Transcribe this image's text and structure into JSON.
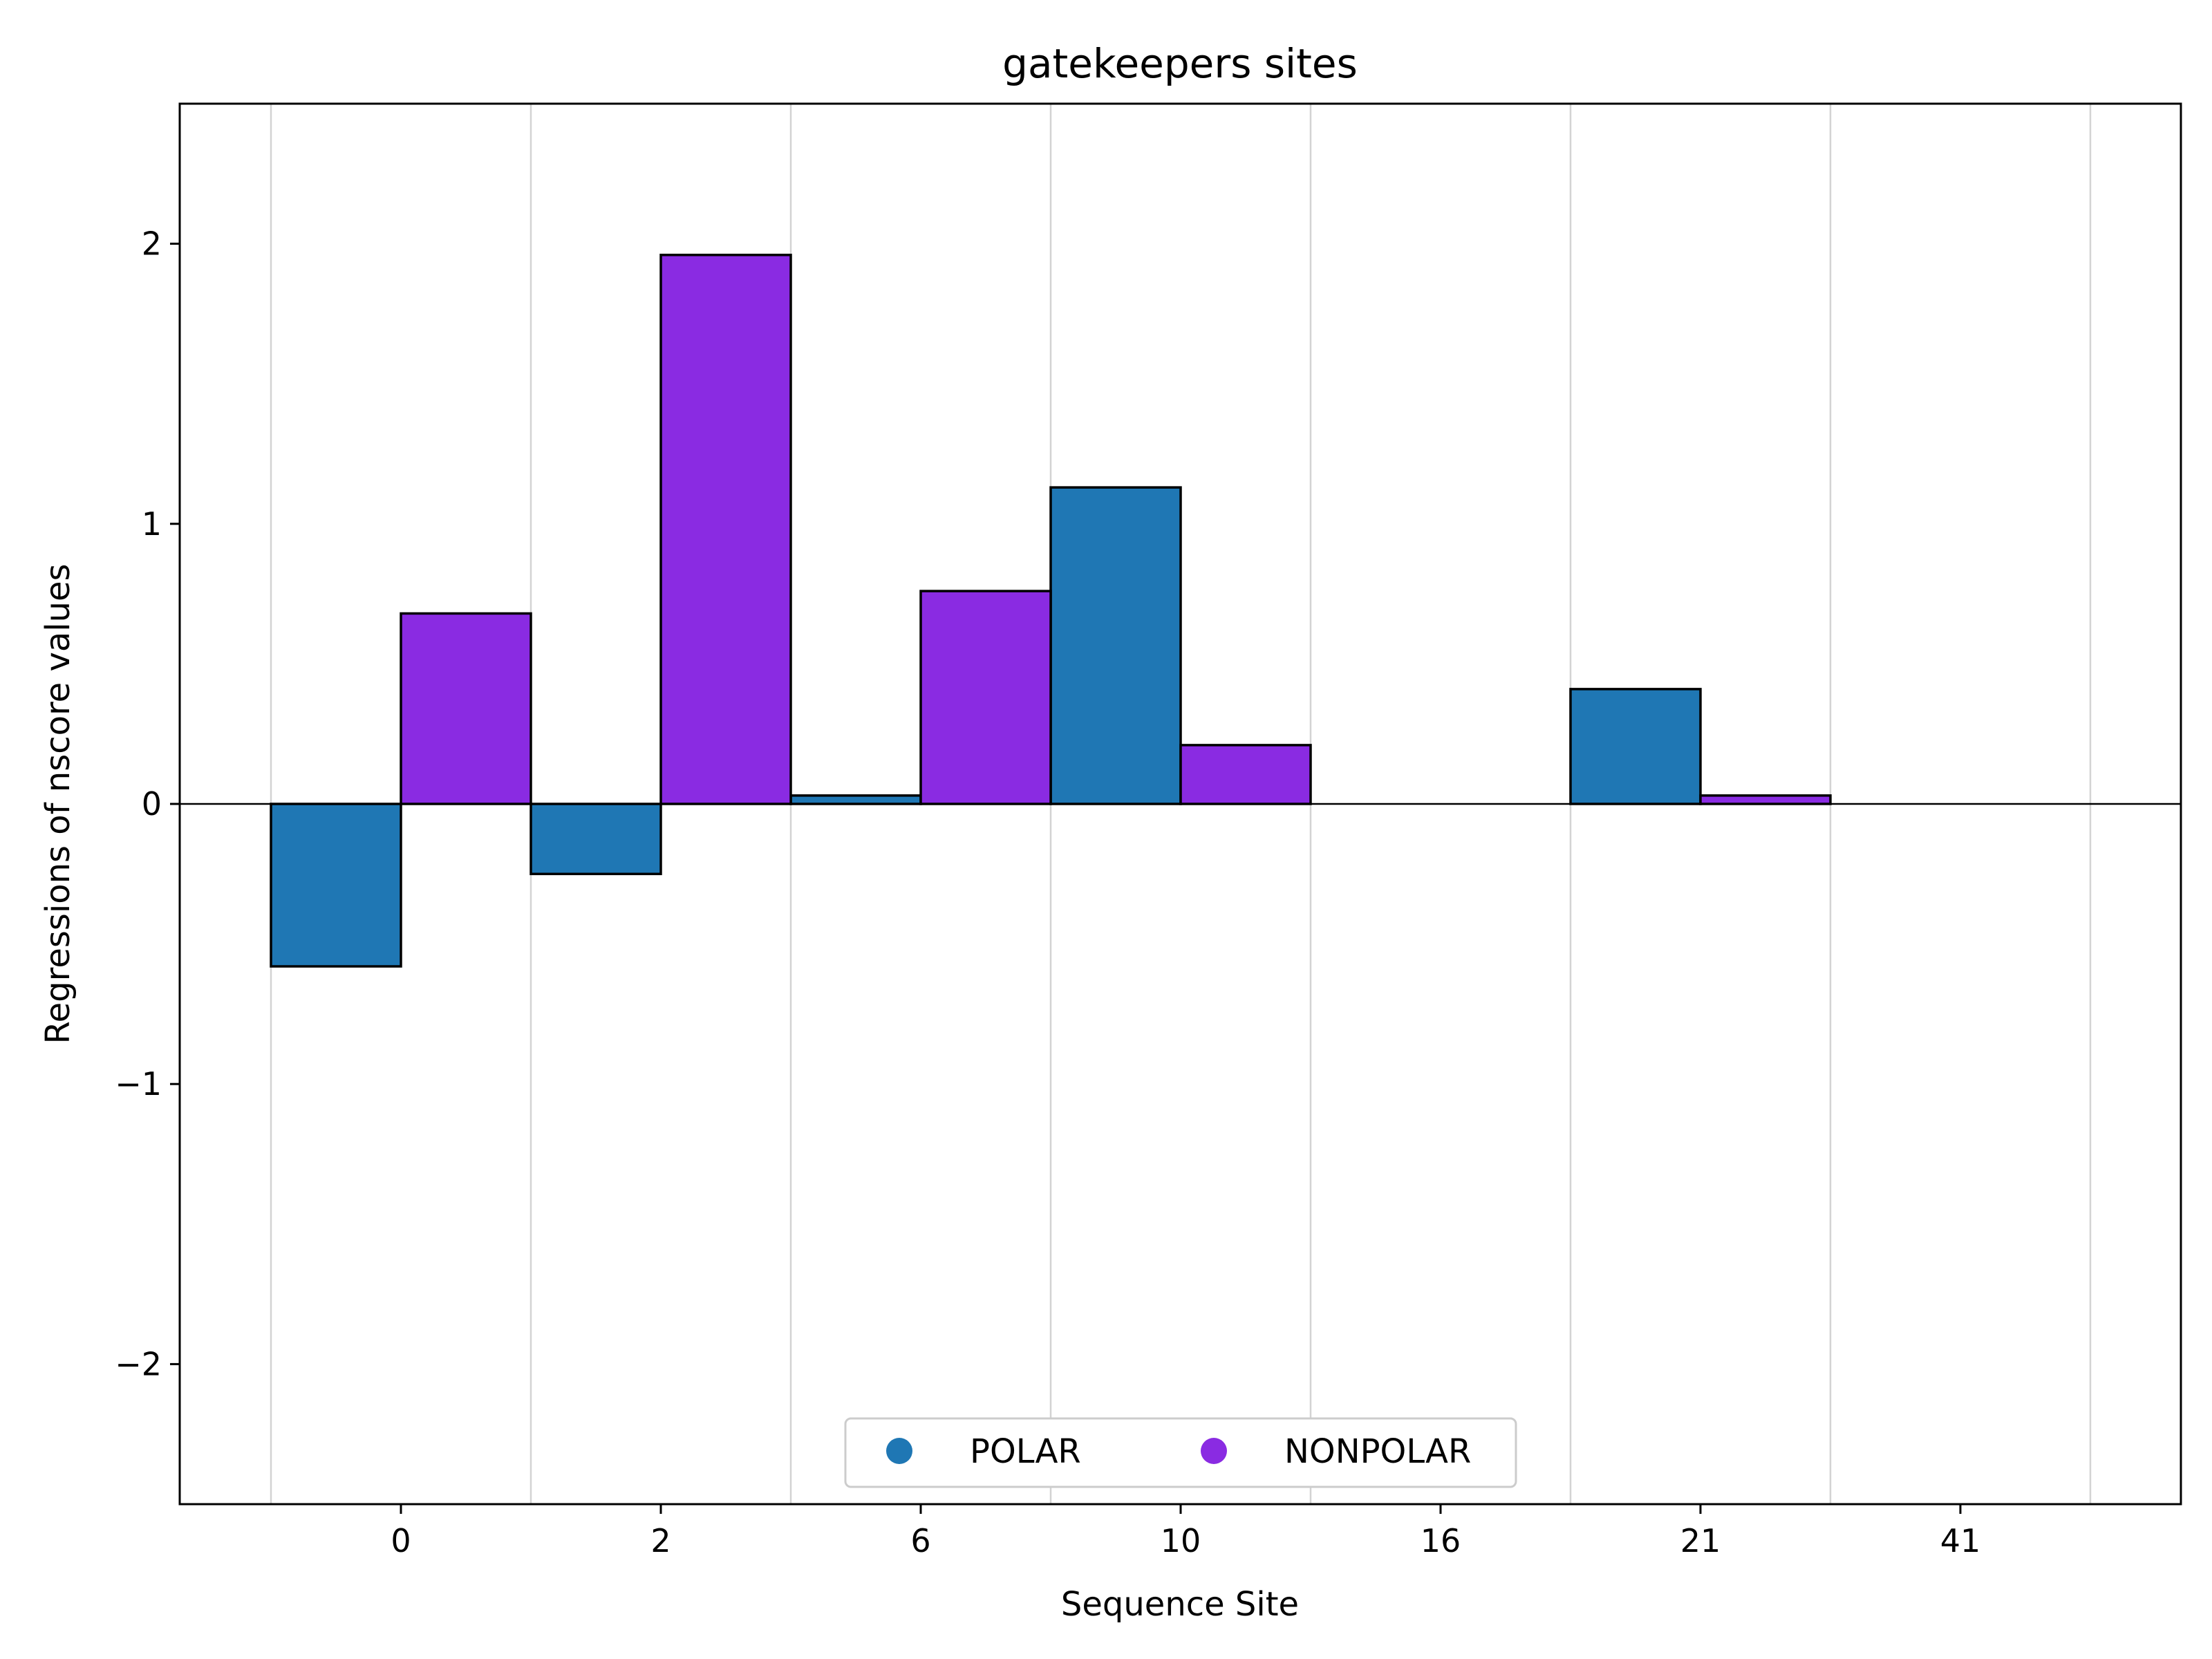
{
  "chart_data": {
    "type": "bar",
    "title": "gatekeepers sites",
    "xlabel": "Sequence Site",
    "ylabel": "Regressions of nscore values",
    "ylim": [
      -2.5,
      2.5
    ],
    "yticks": [
      -2,
      -1,
      0,
      1,
      2
    ],
    "ytick_labels": [
      "−2",
      "−1",
      "0",
      "1",
      "2"
    ],
    "categories": [
      "0",
      "2",
      "6",
      "10",
      "16",
      "21",
      "41"
    ],
    "grid": "vertical",
    "legend_position": "lower-center",
    "series": [
      {
        "name": "POLAR",
        "color": "#1f77b4",
        "values": [
          -0.58,
          -0.25,
          0.03,
          1.13,
          null,
          0.41,
          null
        ]
      },
      {
        "name": "NONPOLAR",
        "color": "#8a2be2",
        "values": [
          0.68,
          1.96,
          0.76,
          0.21,
          null,
          0.03,
          null
        ]
      }
    ]
  }
}
